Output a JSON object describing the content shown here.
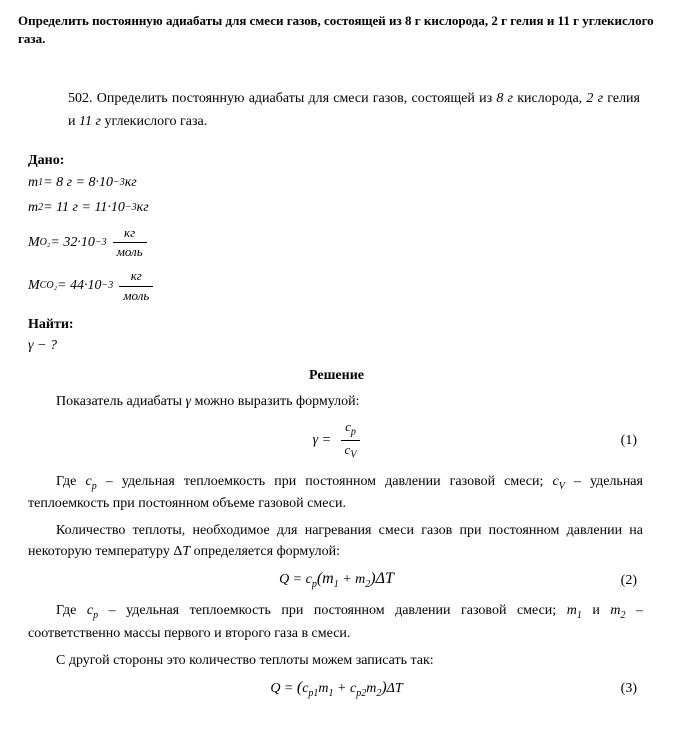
{
  "header": {
    "title": "Определить постоянную адиабаты для смеси газов, состоящей из 8 г кислорода, 2 г гелия и 11 г углекислого газа."
  },
  "problem": {
    "number": "502.",
    "text": "Определить постоянную адиабаты для смеси газов, состоящей из 8 г кислорода, 2 г гелия и 11 г углекислого газа."
  },
  "given": {
    "label": "Дано:",
    "line1_lhs": "m",
    "line1_sub": "1",
    "line1_rhs": " = 8 г = 8·10",
    "line1_exp": "−3",
    "line1_unit": " кг",
    "line2_lhs": "m",
    "line2_sub": "2",
    "line2_rhs": " = 11 г = 11·10",
    "line2_exp": "−3",
    "line2_unit": " кг",
    "line3_lhs": "M",
    "line3_sub": "O₂",
    "line3_rhs": " = 32·10",
    "line3_exp": "−3",
    "line3_frac_num": "кг",
    "line3_frac_den": "моль",
    "line4_lhs": "M",
    "line4_sub": "CO₂",
    "line4_rhs": " = 44·10",
    "line4_exp": "−3",
    "line4_frac_num": "кг",
    "line4_frac_den": "моль"
  },
  "find": {
    "label": "Найти:",
    "line": "γ − ?"
  },
  "solution": {
    "title": "Решение",
    "para1_a": "Показатель адиабаты ",
    "para1_gamma": "γ",
    "para1_b": " можно выразить формулой:",
    "eq1_lhs": "γ = ",
    "eq1_num": "c",
    "eq1_num_sub": "p",
    "eq1_den": "c",
    "eq1_den_sub": "V",
    "eq1_num_label": "(1)",
    "para2_a": "Где ",
    "para2_cp": "c",
    "para2_cp_sub": "p",
    "para2_b": " – удельная теплоемкость при постоянном давлении газовой смеси; ",
    "para2_cv": "c",
    "para2_cv_sub": "V",
    "para2_c": " – удельная теплоемкость при постоянном объеме газовой смеси.",
    "para3": "Количество теплоты, необходимое для нагревания смеси газов при постоянном давлении на некоторую температуру ΔT определяется формулой:",
    "eq2": "Q = c",
    "eq2_sub": "p",
    "eq2_rest": "(m",
    "eq2_m1sub": "1",
    "eq2_plus": " + m",
    "eq2_m2sub": "2",
    "eq2_end": ")ΔT",
    "eq2_num_label": "(2)",
    "para4_a": "Где ",
    "para4_cp": "c",
    "para4_cp_sub": "p",
    "para4_b": " – удельная теплоемкость при постоянном давлении газовой смеси; ",
    "para4_m1": "m",
    "para4_m1_sub": "1",
    "para4_and": " и ",
    "para4_m2": "m",
    "para4_m2_sub": "2",
    "para4_c": " – соответственно массы первого и второго газа в смеси.",
    "para5": "С другой стороны это количество теплоты можем записать так:",
    "eq3_a": "Q = ",
    "eq3_open": "(",
    "eq3_c1": "c",
    "eq3_c1_sub": "p1",
    "eq3_m1": "m",
    "eq3_m1_sub": "1",
    "eq3_plus": " + ",
    "eq3_c2": "c",
    "eq3_c2_sub": "p2",
    "eq3_m2": "m",
    "eq3_m2_sub": "2",
    "eq3_close": ")",
    "eq3_dt": "ΔT",
    "eq3_num_label": "(3)"
  },
  "style": {
    "text_color": "#000000",
    "bg_color": "#ffffff",
    "body_font_size": 14,
    "header_font_size": 13,
    "sub_font_size": 10
  }
}
